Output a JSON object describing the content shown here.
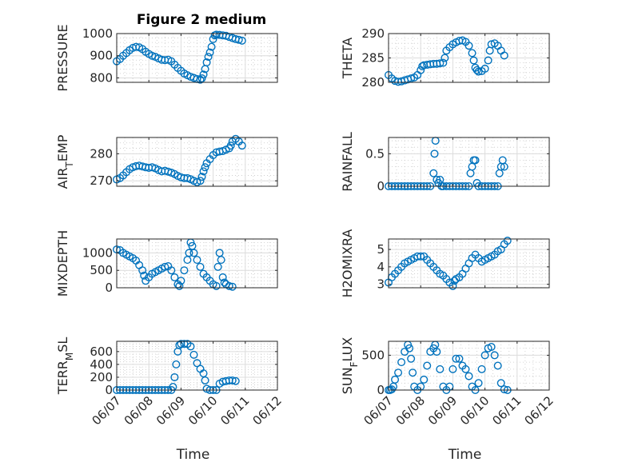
{
  "figure": {
    "title": "Figure 2 medium",
    "marker_color": "#0072bd"
  },
  "chart_data": [
    {
      "type": "scatter",
      "ylabel": "PRESSURE",
      "xlabel": "",
      "ylim": [
        780,
        1000
      ],
      "yticks": [
        800,
        900,
        1000
      ],
      "grid": true,
      "minor_grid": true,
      "points": [
        [
          0,
          875
        ],
        [
          0.1,
          885
        ],
        [
          0.2,
          900
        ],
        [
          0.3,
          912
        ],
        [
          0.4,
          925
        ],
        [
          0.5,
          935
        ],
        [
          0.6,
          940
        ],
        [
          0.7,
          938
        ],
        [
          0.8,
          930
        ],
        [
          0.9,
          918
        ],
        [
          1.0,
          908
        ],
        [
          1.1,
          900
        ],
        [
          1.2,
          895
        ],
        [
          1.3,
          888
        ],
        [
          1.4,
          882
        ],
        [
          1.5,
          880
        ],
        [
          1.6,
          882
        ],
        [
          1.7,
          875
        ],
        [
          1.8,
          860
        ],
        [
          1.9,
          845
        ],
        [
          2.0,
          832
        ],
        [
          2.1,
          820
        ],
        [
          2.2,
          812
        ],
        [
          2.3,
          805
        ],
        [
          2.4,
          800
        ],
        [
          2.5,
          795
        ],
        [
          2.6,
          792
        ],
        [
          2.65,
          798
        ],
        [
          2.7,
          815
        ],
        [
          2.75,
          840
        ],
        [
          2.8,
          870
        ],
        [
          2.85,
          895
        ],
        [
          2.9,
          915
        ],
        [
          2.95,
          940
        ],
        [
          3.0,
          975
        ],
        [
          3.05,
          992
        ],
        [
          3.1,
          995
        ],
        [
          3.2,
          994
        ],
        [
          3.3,
          992
        ],
        [
          3.4,
          990
        ],
        [
          3.5,
          985
        ],
        [
          3.6,
          980
        ],
        [
          3.7,
          975
        ],
        [
          3.8,
          972
        ],
        [
          3.9,
          968
        ]
      ]
    },
    {
      "type": "scatter",
      "ylabel": "THETA",
      "xlabel": "",
      "ylim": [
        280,
        290
      ],
      "yticks": [
        280,
        285,
        290
      ],
      "grid": true,
      "minor_grid": true,
      "points": [
        [
          0,
          281.5
        ],
        [
          0.1,
          280.8
        ],
        [
          0.2,
          280.3
        ],
        [
          0.3,
          280.1
        ],
        [
          0.4,
          280.2
        ],
        [
          0.5,
          280.4
        ],
        [
          0.6,
          280.6
        ],
        [
          0.7,
          280.8
        ],
        [
          0.8,
          281.0
        ],
        [
          0.9,
          281.5
        ],
        [
          1.0,
          282.5
        ],
        [
          1.05,
          283.3
        ],
        [
          1.1,
          283.5
        ],
        [
          1.2,
          283.6
        ],
        [
          1.3,
          283.7
        ],
        [
          1.4,
          283.8
        ],
        [
          1.5,
          283.8
        ],
        [
          1.6,
          283.9
        ],
        [
          1.7,
          284.0
        ],
        [
          1.75,
          285.0
        ],
        [
          1.8,
          286.5
        ],
        [
          1.9,
          287.2
        ],
        [
          2.0,
          287.8
        ],
        [
          2.1,
          288.2
        ],
        [
          2.2,
          288.5
        ],
        [
          2.3,
          288.6
        ],
        [
          2.4,
          288.3
        ],
        [
          2.5,
          287.5
        ],
        [
          2.6,
          286.0
        ],
        [
          2.65,
          284.5
        ],
        [
          2.7,
          283.0
        ],
        [
          2.75,
          282.5
        ],
        [
          2.8,
          282.2
        ],
        [
          2.9,
          282.3
        ],
        [
          3.0,
          282.8
        ],
        [
          3.1,
          284.5
        ],
        [
          3.15,
          286.5
        ],
        [
          3.2,
          287.8
        ],
        [
          3.3,
          288.0
        ],
        [
          3.4,
          287.5
        ],
        [
          3.5,
          286.5
        ],
        [
          3.6,
          285.5
        ]
      ]
    },
    {
      "type": "scatter",
      "ylabel": "AIR_TEMP",
      "xlabel": "",
      "ylim": [
        268,
        286
      ],
      "yticks": [
        270,
        280
      ],
      "grid": true,
      "minor_grid": true,
      "points": [
        [
          0,
          270.5
        ],
        [
          0.1,
          271.0
        ],
        [
          0.2,
          272.0
        ],
        [
          0.3,
          273.2
        ],
        [
          0.4,
          274.3
        ],
        [
          0.5,
          275.0
        ],
        [
          0.6,
          275.4
        ],
        [
          0.7,
          275.6
        ],
        [
          0.8,
          275.3
        ],
        [
          0.9,
          275.0
        ],
        [
          1.0,
          274.8
        ],
        [
          1.1,
          275.0
        ],
        [
          1.2,
          274.6
        ],
        [
          1.3,
          274.0
        ],
        [
          1.4,
          273.5
        ],
        [
          1.5,
          273.7
        ],
        [
          1.6,
          273.4
        ],
        [
          1.7,
          273.0
        ],
        [
          1.8,
          272.5
        ],
        [
          1.9,
          271.8
        ],
        [
          2.0,
          271.3
        ],
        [
          2.1,
          271.0
        ],
        [
          2.2,
          271.0
        ],
        [
          2.3,
          270.6
        ],
        [
          2.4,
          270.0
        ],
        [
          2.5,
          269.5
        ],
        [
          2.6,
          270.0
        ],
        [
          2.65,
          271.5
        ],
        [
          2.7,
          273.5
        ],
        [
          2.75,
          275.0
        ],
        [
          2.8,
          276.5
        ],
        [
          2.9,
          278.0
        ],
        [
          3.0,
          279.5
        ],
        [
          3.1,
          280.5
        ],
        [
          3.2,
          280.8
        ],
        [
          3.3,
          281.0
        ],
        [
          3.4,
          281.5
        ],
        [
          3.5,
          282.0
        ],
        [
          3.55,
          283.0
        ],
        [
          3.6,
          284.5
        ],
        [
          3.7,
          285.5
        ],
        [
          3.8,
          284.5
        ],
        [
          3.9,
          283.0
        ]
      ]
    },
    {
      "type": "scatter",
      "ylabel": "RAINFALL",
      "xlabel": "",
      "ylim": [
        0,
        0.75
      ],
      "yticks": [
        0,
        0.5
      ],
      "grid": true,
      "minor_grid": true,
      "points": [
        [
          0,
          0
        ],
        [
          0.1,
          0
        ],
        [
          0.2,
          0
        ],
        [
          0.3,
          0
        ],
        [
          0.4,
          0
        ],
        [
          0.5,
          0
        ],
        [
          0.6,
          0
        ],
        [
          0.7,
          0
        ],
        [
          0.8,
          0
        ],
        [
          0.9,
          0
        ],
        [
          1.0,
          0
        ],
        [
          1.1,
          0
        ],
        [
          1.2,
          0
        ],
        [
          1.3,
          0
        ],
        [
          1.4,
          0.2
        ],
        [
          1.43,
          0.5
        ],
        [
          1.46,
          0.7
        ],
        [
          1.5,
          0.1
        ],
        [
          1.55,
          0.05
        ],
        [
          1.6,
          0.1
        ],
        [
          1.65,
          0
        ],
        [
          1.7,
          0
        ],
        [
          1.8,
          0
        ],
        [
          1.9,
          0
        ],
        [
          2.0,
          0
        ],
        [
          2.1,
          0
        ],
        [
          2.2,
          0
        ],
        [
          2.3,
          0
        ],
        [
          2.4,
          0
        ],
        [
          2.5,
          0
        ],
        [
          2.55,
          0.2
        ],
        [
          2.6,
          0.3
        ],
        [
          2.65,
          0.4
        ],
        [
          2.7,
          0.4
        ],
        [
          2.75,
          0.05
        ],
        [
          2.8,
          0
        ],
        [
          2.9,
          0
        ],
        [
          3.0,
          0
        ],
        [
          3.1,
          0
        ],
        [
          3.2,
          0
        ],
        [
          3.3,
          0
        ],
        [
          3.4,
          0
        ],
        [
          3.45,
          0.2
        ],
        [
          3.5,
          0.3
        ],
        [
          3.55,
          0.4
        ],
        [
          3.6,
          0.3
        ]
      ]
    },
    {
      "type": "scatter",
      "ylabel": "MIXDEPTH",
      "xlabel": "",
      "ylim": [
        0,
        1400
      ],
      "yticks": [
        0,
        500,
        1000
      ],
      "grid": true,
      "minor_grid": true,
      "points": [
        [
          0,
          1100
        ],
        [
          0.1,
          1080
        ],
        [
          0.2,
          1000
        ],
        [
          0.3,
          950
        ],
        [
          0.4,
          900
        ],
        [
          0.5,
          850
        ],
        [
          0.6,
          780
        ],
        [
          0.7,
          650
        ],
        [
          0.8,
          500
        ],
        [
          0.85,
          350
        ],
        [
          0.9,
          200
        ],
        [
          1.0,
          300
        ],
        [
          1.1,
          400
        ],
        [
          1.2,
          450
        ],
        [
          1.3,
          500
        ],
        [
          1.4,
          550
        ],
        [
          1.5,
          600
        ],
        [
          1.6,
          620
        ],
        [
          1.7,
          500
        ],
        [
          1.8,
          300
        ],
        [
          1.9,
          100
        ],
        [
          1.95,
          50
        ],
        [
          2.0,
          200
        ],
        [
          2.1,
          500
        ],
        [
          2.2,
          800
        ],
        [
          2.25,
          1000
        ],
        [
          2.3,
          1300
        ],
        [
          2.35,
          1200
        ],
        [
          2.4,
          1000
        ],
        [
          2.5,
          800
        ],
        [
          2.6,
          600
        ],
        [
          2.7,
          400
        ],
        [
          2.8,
          300
        ],
        [
          2.9,
          200
        ],
        [
          3.0,
          100
        ],
        [
          3.1,
          50
        ],
        [
          3.15,
          600
        ],
        [
          3.2,
          1000
        ],
        [
          3.25,
          800
        ],
        [
          3.3,
          300
        ],
        [
          3.35,
          150
        ],
        [
          3.4,
          100
        ],
        [
          3.5,
          50
        ],
        [
          3.6,
          30
        ]
      ]
    },
    {
      "type": "scatter",
      "ylabel": "H2OMIXRA",
      "xlabel": "",
      "ylim": [
        2.8,
        5.6
      ],
      "yticks": [
        3,
        4,
        5
      ],
      "grid": true,
      "minor_grid": true,
      "points": [
        [
          0,
          3.1
        ],
        [
          0.1,
          3.4
        ],
        [
          0.2,
          3.6
        ],
        [
          0.3,
          3.8
        ],
        [
          0.4,
          4.0
        ],
        [
          0.5,
          4.2
        ],
        [
          0.6,
          4.3
        ],
        [
          0.7,
          4.4
        ],
        [
          0.8,
          4.5
        ],
        [
          0.9,
          4.6
        ],
        [
          1.0,
          4.6
        ],
        [
          1.1,
          4.6
        ],
        [
          1.2,
          4.4
        ],
        [
          1.3,
          4.2
        ],
        [
          1.4,
          4.0
        ],
        [
          1.5,
          3.8
        ],
        [
          1.6,
          3.6
        ],
        [
          1.7,
          3.5
        ],
        [
          1.8,
          3.3
        ],
        [
          1.9,
          3.1
        ],
        [
          2.0,
          2.9
        ],
        [
          2.05,
          3.2
        ],
        [
          2.1,
          3.3
        ],
        [
          2.2,
          3.4
        ],
        [
          2.3,
          3.6
        ],
        [
          2.4,
          3.9
        ],
        [
          2.5,
          4.2
        ],
        [
          2.6,
          4.5
        ],
        [
          2.7,
          4.7
        ],
        [
          2.8,
          4.5
        ],
        [
          2.9,
          4.3
        ],
        [
          3.0,
          4.4
        ],
        [
          3.1,
          4.5
        ],
        [
          3.2,
          4.6
        ],
        [
          3.3,
          4.7
        ],
        [
          3.4,
          4.9
        ],
        [
          3.5,
          5.0
        ],
        [
          3.6,
          5.3
        ],
        [
          3.7,
          5.5
        ]
      ]
    },
    {
      "type": "scatter",
      "ylabel": "TERR_MSL",
      "xlabel": "Time",
      "ylim": [
        0,
        760
      ],
      "yticks": [
        0,
        200,
        400,
        600
      ],
      "grid": true,
      "minor_grid": true,
      "xticks": [
        "06/07",
        "06/08",
        "06/09",
        "06/10",
        "06/11",
        "06/12"
      ],
      "points": [
        [
          0,
          0
        ],
        [
          0.1,
          0
        ],
        [
          0.2,
          0
        ],
        [
          0.3,
          0
        ],
        [
          0.4,
          0
        ],
        [
          0.5,
          0
        ],
        [
          0.6,
          0
        ],
        [
          0.7,
          0
        ],
        [
          0.8,
          0
        ],
        [
          0.9,
          0
        ],
        [
          1.0,
          0
        ],
        [
          1.1,
          0
        ],
        [
          1.2,
          0
        ],
        [
          1.3,
          0
        ],
        [
          1.4,
          0
        ],
        [
          1.5,
          0
        ],
        [
          1.6,
          0
        ],
        [
          1.7,
          0
        ],
        [
          1.75,
          50
        ],
        [
          1.8,
          200
        ],
        [
          1.85,
          400
        ],
        [
          1.9,
          600
        ],
        [
          1.95,
          700
        ],
        [
          2.0,
          720
        ],
        [
          2.1,
          720
        ],
        [
          2.2,
          720
        ],
        [
          2.3,
          680
        ],
        [
          2.4,
          550
        ],
        [
          2.5,
          420
        ],
        [
          2.6,
          330
        ],
        [
          2.7,
          260
        ],
        [
          2.75,
          150
        ],
        [
          2.8,
          20
        ],
        [
          2.9,
          0
        ],
        [
          3.0,
          0
        ],
        [
          3.1,
          0
        ],
        [
          3.2,
          100
        ],
        [
          3.3,
          130
        ],
        [
          3.4,
          140
        ],
        [
          3.5,
          150
        ],
        [
          3.6,
          150
        ],
        [
          3.7,
          140
        ]
      ]
    },
    {
      "type": "scatter",
      "ylabel": "SUN_FLUX",
      "xlabel": "Time",
      "ylim": [
        0,
        700
      ],
      "yticks": [
        0,
        500
      ],
      "grid": true,
      "minor_grid": true,
      "xticks": [
        "06/07",
        "06/08",
        "06/09",
        "06/10",
        "06/11",
        "06/12"
      ],
      "points": [
        [
          0,
          0
        ],
        [
          0.05,
          0
        ],
        [
          0.1,
          10
        ],
        [
          0.15,
          50
        ],
        [
          0.2,
          150
        ],
        [
          0.3,
          250
        ],
        [
          0.4,
          400
        ],
        [
          0.5,
          550
        ],
        [
          0.6,
          650
        ],
        [
          0.65,
          600
        ],
        [
          0.7,
          450
        ],
        [
          0.75,
          250
        ],
        [
          0.8,
          50
        ],
        [
          0.9,
          0
        ],
        [
          1.0,
          50
        ],
        [
          1.1,
          150
        ],
        [
          1.2,
          350
        ],
        [
          1.3,
          550
        ],
        [
          1.4,
          600
        ],
        [
          1.45,
          650
        ],
        [
          1.5,
          550
        ],
        [
          1.6,
          300
        ],
        [
          1.7,
          50
        ],
        [
          1.8,
          0
        ],
        [
          1.9,
          50
        ],
        [
          2.0,
          300
        ],
        [
          2.1,
          450
        ],
        [
          2.2,
          450
        ],
        [
          2.3,
          350
        ],
        [
          2.4,
          300
        ],
        [
          2.5,
          200
        ],
        [
          2.6,
          50
        ],
        [
          2.7,
          0
        ],
        [
          2.8,
          100
        ],
        [
          2.9,
          300
        ],
        [
          3.0,
          500
        ],
        [
          3.1,
          600
        ],
        [
          3.2,
          620
        ],
        [
          3.3,
          500
        ],
        [
          3.4,
          350
        ],
        [
          3.5,
          100
        ],
        [
          3.6,
          10
        ],
        [
          3.7,
          0
        ]
      ]
    }
  ]
}
